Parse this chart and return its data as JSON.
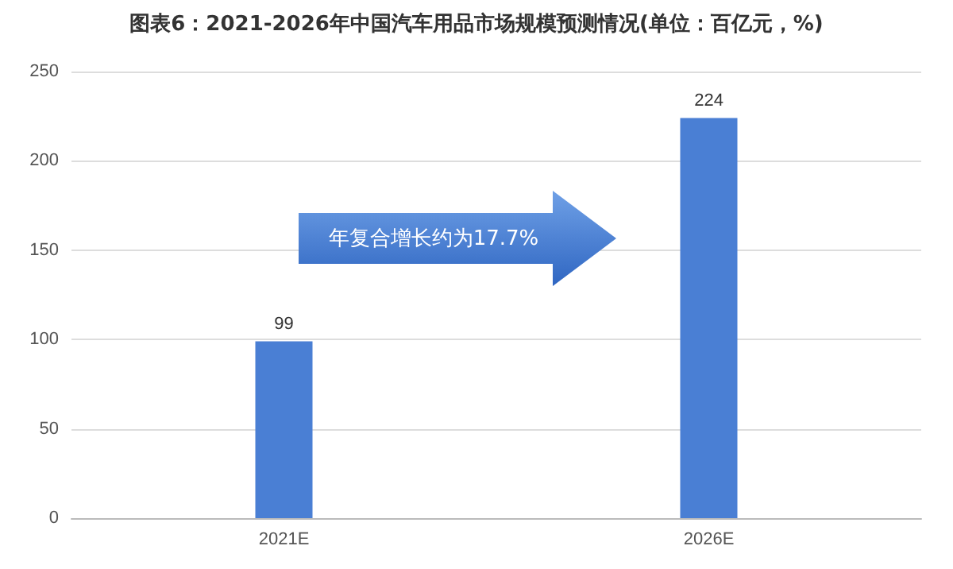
{
  "chart_data": {
    "type": "bar",
    "title": "图表6：2021-2026年中国汽车用品市场规模预测情况(单位：百亿元，%)",
    "categories": [
      "2021E",
      "2026E"
    ],
    "values": [
      99,
      224
    ],
    "color": "#4a7fd4",
    "ylim": [
      0,
      250
    ],
    "yticks": [
      0,
      50,
      100,
      150,
      200,
      250
    ],
    "grid": "y",
    "data_labels": true,
    "annotations": [
      "年复合增长约为17.7%"
    ]
  }
}
